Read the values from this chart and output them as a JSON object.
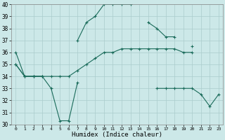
{
  "xlabel": "Humidex (Indice chaleur)",
  "x": [
    0,
    1,
    2,
    3,
    4,
    5,
    6,
    7,
    8,
    9,
    10,
    11,
    12,
    13,
    14,
    15,
    16,
    17,
    18,
    19,
    20,
    21,
    22,
    23
  ],
  "line1": [
    36,
    34,
    34,
    34,
    null,
    null,
    null,
    37,
    38.5,
    39,
    40,
    40,
    40,
    40,
    null,
    38.5,
    38,
    37.3,
    37.3,
    null,
    36.5,
    null,
    null,
    null
  ],
  "line2": [
    35,
    34,
    34,
    34,
    34,
    34,
    34,
    34.5,
    35,
    35.5,
    36,
    36,
    36.3,
    36.3,
    36.3,
    36.3,
    36.3,
    36.3,
    36.3,
    36.0,
    36.0,
    null,
    null,
    null
  ],
  "line3": [
    35,
    34,
    34,
    34,
    33,
    30.3,
    30.3,
    33.5,
    null,
    null,
    null,
    null,
    null,
    null,
    null,
    null,
    33,
    33,
    33,
    33,
    33,
    32.5,
    31.5,
    32.5
  ],
  "line_color": "#1a6b5a",
  "bg_color": "#cce8e8",
  "grid_color": "#aacccc",
  "ylim_min": 30,
  "ylim_max": 40,
  "yticks": [
    30,
    31,
    32,
    33,
    34,
    35,
    36,
    37,
    38,
    39,
    40
  ],
  "xticks": [
    0,
    1,
    2,
    3,
    4,
    5,
    6,
    7,
    8,
    9,
    10,
    11,
    12,
    13,
    14,
    15,
    16,
    17,
    18,
    19,
    20,
    21,
    22,
    23
  ]
}
